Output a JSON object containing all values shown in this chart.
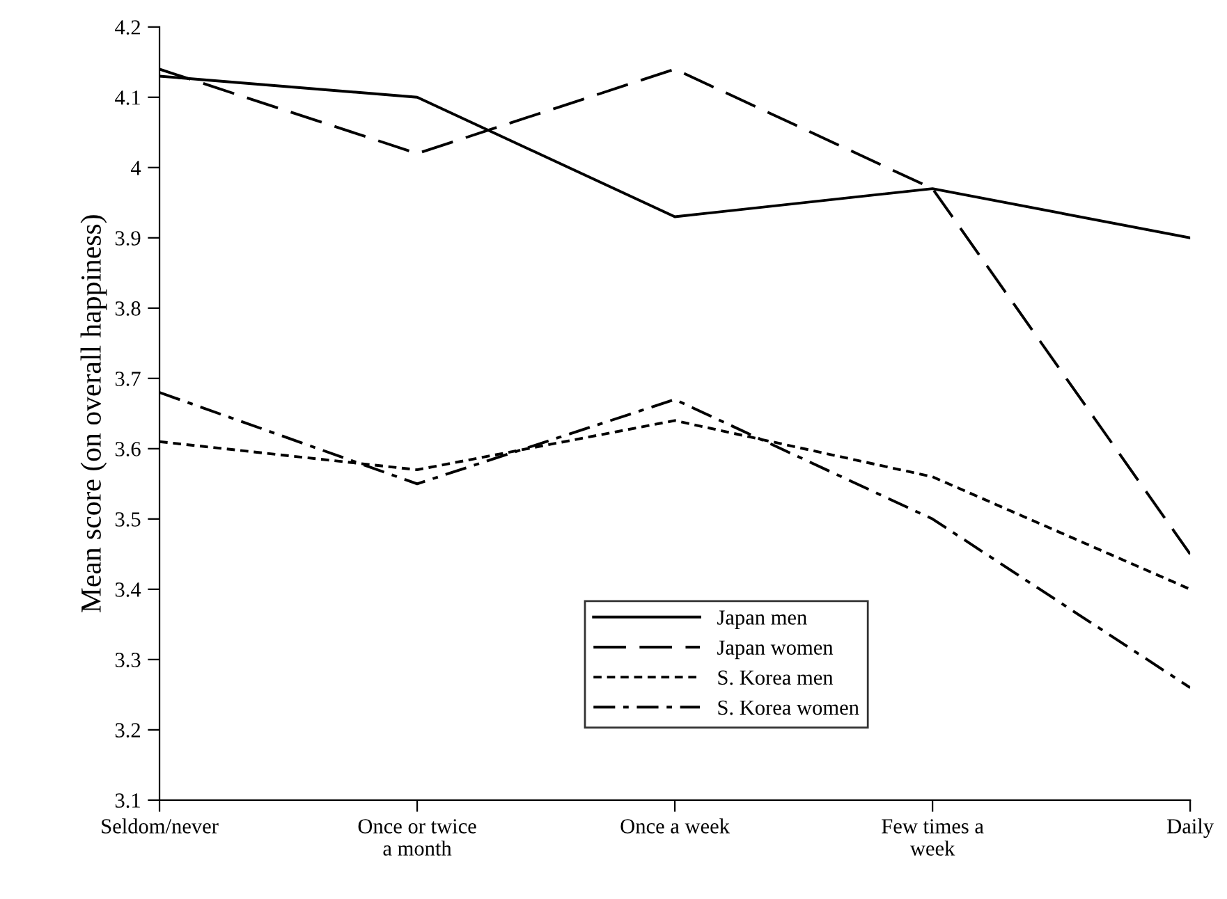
{
  "chart_data": {
    "type": "line",
    "ylabel": "Mean score (on overall happiness)",
    "categories": [
      "Seldom/never",
      "Once or twice\na month",
      "Once a week",
      "Few times a\nweek",
      "Daily"
    ],
    "series": [
      {
        "name": "Japan men",
        "color": "#000000",
        "line_style": "solid",
        "values": [
          4.13,
          4.1,
          3.93,
          3.97,
          3.9
        ]
      },
      {
        "name": "Japan women",
        "color": "#000000",
        "line_style": "dashed",
        "values": [
          4.14,
          4.02,
          4.14,
          3.97,
          3.45
        ]
      },
      {
        "name": "S. Korea men",
        "color": "#000000",
        "line_style": "dotted",
        "values": [
          3.61,
          3.57,
          3.64,
          3.56,
          3.4
        ]
      },
      {
        "name": "S. Korea women",
        "color": "#000000",
        "line_style": "dashdot",
        "values": [
          3.68,
          3.55,
          3.67,
          3.5,
          3.26
        ]
      }
    ],
    "ylim": [
      3.1,
      4.2
    ],
    "yticks": [
      3.1,
      3.2,
      3.3,
      3.4,
      3.5,
      3.6,
      3.7,
      3.8,
      3.9,
      4,
      4.1,
      4.2
    ],
    "grid": false,
    "legend": "bottom",
    "marker": "none"
  }
}
